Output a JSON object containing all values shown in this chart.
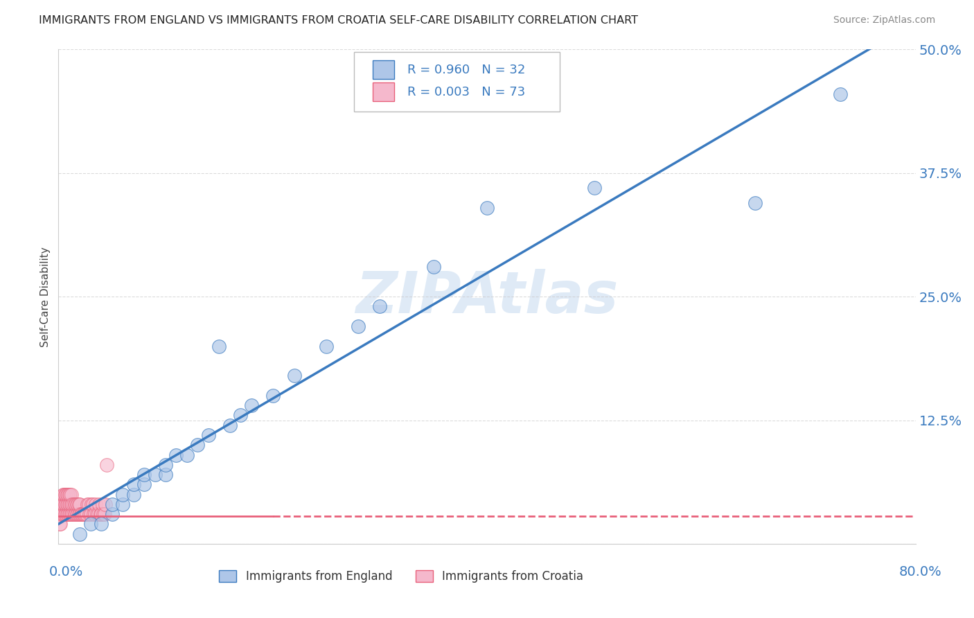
{
  "title": "IMMIGRANTS FROM ENGLAND VS IMMIGRANTS FROM CROATIA SELF-CARE DISABILITY CORRELATION CHART",
  "source": "Source: ZipAtlas.com",
  "ylabel": "Self-Care Disability",
  "watermark": "ZIPAtlas",
  "england_R": "0.960",
  "england_N": "32",
  "croatia_R": "0.003",
  "croatia_N": "73",
  "england_color": "#aec6e8",
  "england_line_color": "#3a7abf",
  "croatia_color": "#f5b8cc",
  "croatia_line_color": "#e8607a",
  "legend_text_color": "#3a7abf",
  "title_color": "#222222",
  "axis_label_color": "#3a7abf",
  "grid_color": "#cccccc",
  "background_color": "#ffffff",
  "england_x": [
    0.02,
    0.03,
    0.04,
    0.05,
    0.05,
    0.06,
    0.06,
    0.07,
    0.07,
    0.08,
    0.08,
    0.09,
    0.1,
    0.1,
    0.11,
    0.12,
    0.13,
    0.14,
    0.15,
    0.16,
    0.17,
    0.18,
    0.2,
    0.22,
    0.25,
    0.28,
    0.3,
    0.35,
    0.4,
    0.5,
    0.65,
    0.73
  ],
  "england_y": [
    0.01,
    0.02,
    0.02,
    0.03,
    0.04,
    0.04,
    0.05,
    0.05,
    0.06,
    0.06,
    0.07,
    0.07,
    0.07,
    0.08,
    0.09,
    0.09,
    0.1,
    0.11,
    0.2,
    0.12,
    0.13,
    0.14,
    0.15,
    0.17,
    0.2,
    0.22,
    0.24,
    0.28,
    0.34,
    0.36,
    0.345,
    0.455
  ],
  "croatia_x": [
    0.001,
    0.002,
    0.002,
    0.003,
    0.003,
    0.004,
    0.004,
    0.004,
    0.005,
    0.005,
    0.005,
    0.006,
    0.006,
    0.006,
    0.007,
    0.007,
    0.007,
    0.008,
    0.008,
    0.008,
    0.009,
    0.009,
    0.009,
    0.01,
    0.01,
    0.01,
    0.011,
    0.011,
    0.011,
    0.012,
    0.012,
    0.012,
    0.013,
    0.013,
    0.014,
    0.014,
    0.015,
    0.015,
    0.016,
    0.016,
    0.017,
    0.017,
    0.018,
    0.018,
    0.019,
    0.019,
    0.02,
    0.02,
    0.021,
    0.022,
    0.023,
    0.024,
    0.025,
    0.026,
    0.027,
    0.028,
    0.029,
    0.03,
    0.031,
    0.032,
    0.033,
    0.034,
    0.035,
    0.036,
    0.037,
    0.038,
    0.039,
    0.04,
    0.041,
    0.042,
    0.043,
    0.044,
    0.045
  ],
  "croatia_y": [
    0.02,
    0.03,
    0.02,
    0.03,
    0.04,
    0.03,
    0.04,
    0.05,
    0.03,
    0.04,
    0.05,
    0.03,
    0.04,
    0.05,
    0.03,
    0.04,
    0.05,
    0.03,
    0.04,
    0.05,
    0.03,
    0.04,
    0.05,
    0.03,
    0.04,
    0.05,
    0.03,
    0.04,
    0.05,
    0.03,
    0.04,
    0.05,
    0.03,
    0.04,
    0.03,
    0.04,
    0.03,
    0.04,
    0.03,
    0.04,
    0.03,
    0.04,
    0.03,
    0.04,
    0.03,
    0.04,
    0.03,
    0.04,
    0.03,
    0.03,
    0.03,
    0.03,
    0.03,
    0.03,
    0.04,
    0.04,
    0.03,
    0.03,
    0.04,
    0.04,
    0.03,
    0.03,
    0.04,
    0.03,
    0.03,
    0.04,
    0.03,
    0.03,
    0.04,
    0.03,
    0.03,
    0.04,
    0.08
  ],
  "croatia_line_y": 0.028,
  "xlim": [
    0.0,
    0.8
  ],
  "ylim": [
    0.0,
    0.5
  ],
  "yticks": [
    0.0,
    0.125,
    0.25,
    0.375,
    0.5
  ],
  "ytick_labels": [
    "",
    "12.5%",
    "25.0%",
    "37.5%",
    "50.0%"
  ]
}
